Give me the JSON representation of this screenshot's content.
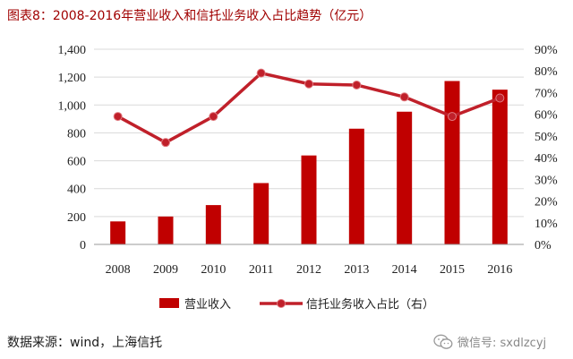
{
  "figure": {
    "title": "图表8：2008-2016年营业收入和信托业务收入占比趋势（亿元）",
    "source": "数据来源：wind，上海信托",
    "watermark": "微信号: sxdlzcyj",
    "watermark_icon": "wechat-icon"
  },
  "colors": {
    "bar": "#c00000",
    "line": "#c0202a",
    "grid": "#d9d9d9",
    "title": "#a00000"
  },
  "chart_data": {
    "type": "bar",
    "categories": [
      "2008",
      "2009",
      "2010",
      "2011",
      "2012",
      "2013",
      "2014",
      "2015",
      "2016"
    ],
    "series": [
      {
        "name": "营业收入",
        "type": "bar",
        "axis": "left",
        "values": [
          165,
          200,
          282,
          440,
          638,
          830,
          952,
          1172,
          1110
        ]
      },
      {
        "name": "信托业务收入占比（右）",
        "type": "line",
        "axis": "right",
        "unit": "%",
        "values": [
          59,
          47,
          59,
          79,
          74,
          73.5,
          68,
          59,
          67.5
        ]
      }
    ],
    "y_left": {
      "min": 0,
      "max": 1400,
      "ticks": [
        "0",
        "200",
        "400",
        "600",
        "800",
        "1,000",
        "1,200",
        "1,400"
      ]
    },
    "y_right": {
      "min": 0,
      "max": 90,
      "ticks": [
        "0%",
        "10%",
        "20%",
        "30%",
        "40%",
        "50%",
        "60%",
        "70%",
        "80%",
        "90%"
      ]
    },
    "grid": true,
    "legend_position": "bottom"
  }
}
